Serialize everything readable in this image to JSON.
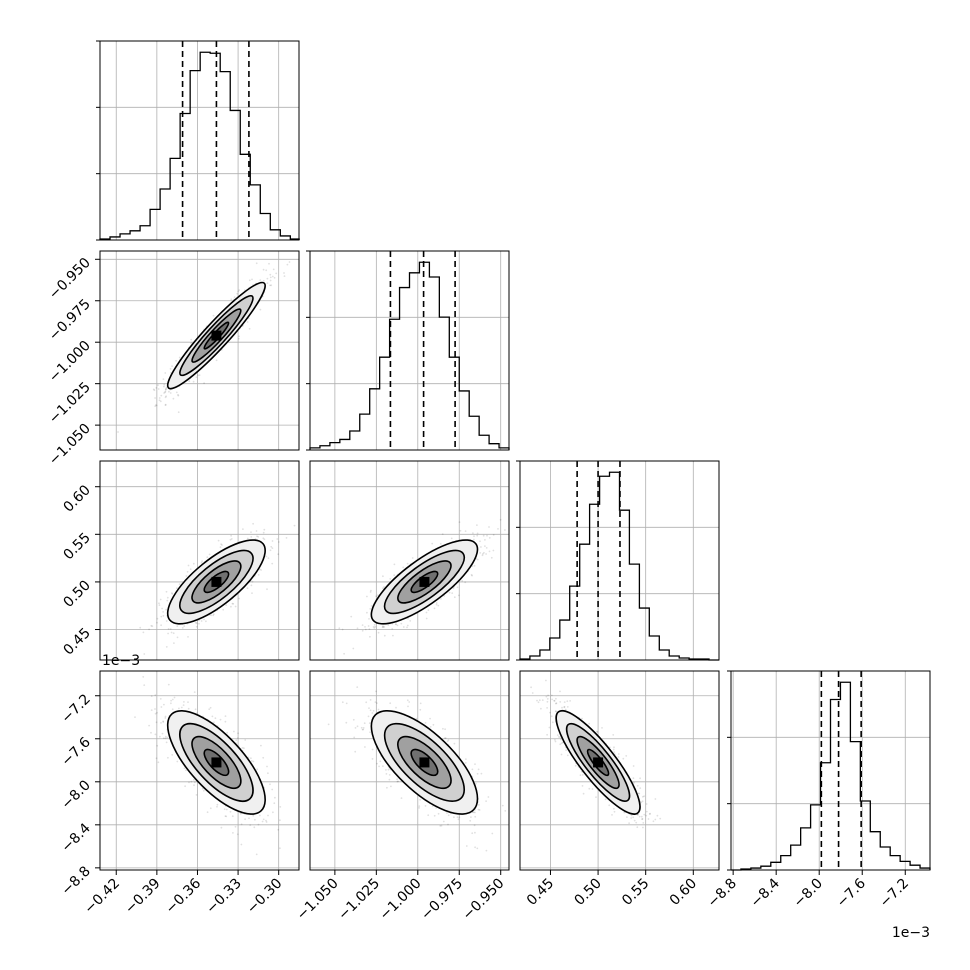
{
  "chart_data": {
    "type": "corner",
    "title": "",
    "parameters": [
      {
        "label": "",
        "range": [
          -0.432,
          -0.285
        ],
        "ticks": [
          -0.42,
          -0.39,
          -0.36,
          -0.33,
          -0.3
        ],
        "tick_labels": [
          "−0.42",
          "−0.39",
          "−0.36",
          "−0.33",
          "−0.30"
        ]
      },
      {
        "label": "",
        "range": [
          -1.065,
          -0.945
        ],
        "ticks": [
          -1.05,
          -1.025,
          -1.0,
          -0.975,
          -0.95
        ],
        "tick_labels": [
          "−1.050",
          "−1.025",
          "−1.000",
          "−0.975",
          "−0.950"
        ]
      },
      {
        "label": "",
        "range": [
          0.418,
          0.627
        ],
        "ticks": [
          0.45,
          0.5,
          0.55,
          0.6
        ],
        "tick_labels": [
          "0.45",
          "0.50",
          "0.55",
          "0.60"
        ]
      },
      {
        "label": "",
        "range": [
          -8.82,
          -6.97
        ],
        "ticks": [
          -8.8,
          -8.4,
          -8.0,
          -7.6,
          -7.2
        ],
        "tick_labels": [
          "−8.8",
          "−8.4",
          "−8.0",
          "−7.6",
          "−7.2"
        ],
        "offset_text": "1e−3"
      }
    ],
    "marginals": [
      {
        "param": 0,
        "quantiles": [
          -0.371,
          -0.346,
          -0.322
        ],
        "bins": [
          -0.432,
          -0.4246,
          -0.4172,
          -0.4098,
          -0.4024,
          -0.395,
          -0.3876,
          -0.3802,
          -0.3728,
          -0.3654,
          -0.358,
          -0.3506,
          -0.3432,
          -0.3358,
          -0.3284,
          -0.321,
          -0.3136,
          -0.3062,
          -0.2988,
          -0.2914,
          -0.2849
        ],
        "counts": [
          1,
          3,
          6,
          9,
          14,
          30,
          50,
          80,
          124,
          166,
          184,
          183,
          165,
          127,
          84,
          54,
          26,
          10,
          4,
          1
        ]
      },
      {
        "param": 1,
        "quantiles": [
          -1.0165,
          -0.9965,
          -0.9775
        ],
        "bins": [
          -1.065,
          -1.059,
          -1.053,
          -1.047,
          -1.041,
          -1.035,
          -1.029,
          -1.023,
          -1.017,
          -1.011,
          -1.005,
          -0.999,
          -0.993,
          -0.987,
          -0.981,
          -0.975,
          -0.969,
          -0.963,
          -0.957,
          -0.951,
          -0.945
        ],
        "counts": [
          2,
          4,
          7,
          10,
          18,
          34,
          58,
          88,
          124,
          154,
          168,
          178,
          164,
          126,
          88,
          56,
          32,
          14,
          6,
          2
        ]
      },
      {
        "param": 2,
        "quantiles": [
          0.478,
          0.5,
          0.523
        ],
        "bins": [
          0.418,
          0.4284,
          0.4389,
          0.4493,
          0.4598,
          0.4702,
          0.4807,
          0.4911,
          0.5016,
          0.512,
          0.5225,
          0.5329,
          0.5434,
          0.5538,
          0.5643,
          0.5747,
          0.5852,
          0.5956,
          0.6061,
          0.6165,
          0.627
        ],
        "counts": [
          1,
          4,
          10,
          22,
          40,
          74,
          116,
          156,
          184,
          188,
          150,
          96,
          52,
          24,
          10,
          4,
          2,
          1,
          1,
          0
        ]
      },
      {
        "param": 3,
        "quantiles": [
          -7.98,
          -7.82,
          -7.61
        ],
        "bins": [
          -8.82,
          -8.7275,
          -8.635,
          -8.5425,
          -8.45,
          -8.3575,
          -8.265,
          -8.1725,
          -8.08,
          -7.9875,
          -7.895,
          -7.8025,
          -7.71,
          -7.6175,
          -7.525,
          -7.4325,
          -7.34,
          -7.2475,
          -7.155,
          -7.0625,
          -6.97
        ],
        "counts": [
          0,
          1,
          2,
          4,
          8,
          15,
          26,
          44,
          68,
          112,
          178,
          196,
          134,
          72,
          40,
          24,
          15,
          9,
          5,
          2
        ]
      }
    ],
    "pairs": [
      {
        "x": 0,
        "y": 1,
        "center": [
          -0.346,
          -0.996
        ],
        "sd": [
          0.018,
          0.016
        ],
        "rho": 0.94
      },
      {
        "x": 0,
        "y": 2,
        "center": [
          -0.346,
          0.5
        ],
        "sd": [
          0.018,
          0.022
        ],
        "rho": 0.75
      },
      {
        "x": 1,
        "y": 2,
        "center": [
          -0.996,
          0.5
        ],
        "sd": [
          0.016,
          0.022
        ],
        "rho": 0.78
      },
      {
        "x": 0,
        "y": 3,
        "center": [
          -0.346,
          -7.82
        ],
        "sd": [
          0.018,
          0.24
        ],
        "rho": -0.72
      },
      {
        "x": 1,
        "y": 3,
        "center": [
          -0.996,
          -7.82
        ],
        "sd": [
          0.016,
          0.24
        ],
        "rho": -0.7
      },
      {
        "x": 2,
        "y": 3,
        "center": [
          0.5,
          -7.82
        ],
        "sd": [
          0.022,
          0.24
        ],
        "rho": -0.86
      }
    ],
    "levels": [
      "0.5",
      "1",
      "1.5",
      "2"
    ],
    "grid": true,
    "legend": "none"
  }
}
